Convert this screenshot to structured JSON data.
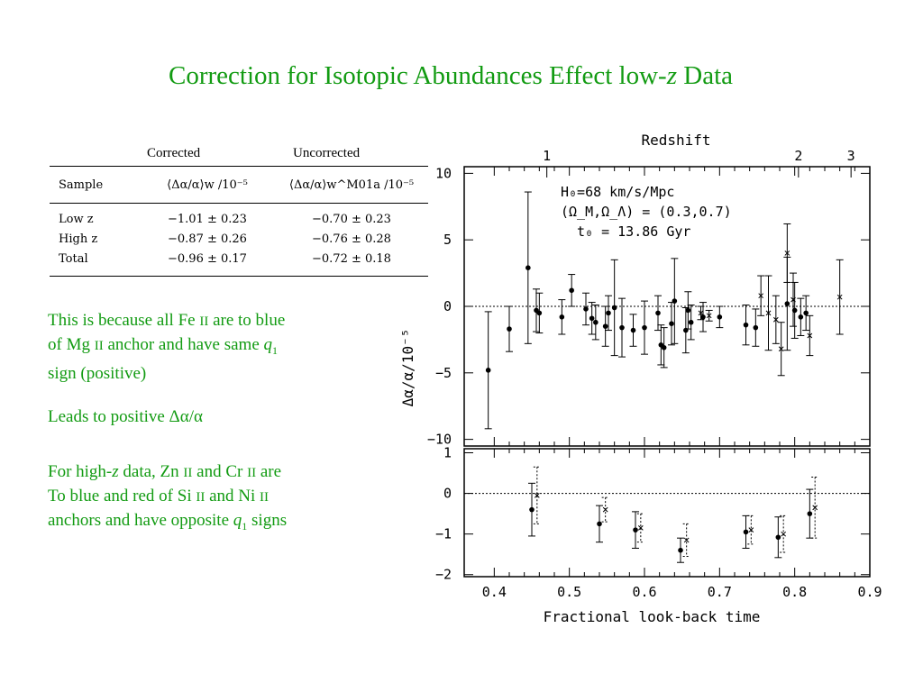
{
  "slide": {
    "title_main": "Correction for Isotopic Abundances Effect low-",
    "title_z": "z",
    "title_tail": " Data"
  },
  "table": {
    "caption_corrected": "Corrected",
    "caption_uncorrected": "Uncorrected",
    "header_sample": "Sample",
    "header_corrected": "⟨Δα/α⟩w /10⁻⁵",
    "header_uncorrected": "⟨Δα/α⟩w^M01a /10⁻⁵",
    "rows": [
      {
        "sample": "Low z",
        "corrected": "−1.01 ± 0.23",
        "uncorrected": "−0.70 ± 0.23"
      },
      {
        "sample": "High z",
        "corrected": "−0.87 ± 0.26",
        "uncorrected": "−0.76 ± 0.28"
      },
      {
        "sample": "Total",
        "corrected": "−0.96 ± 0.17",
        "uncorrected": "−0.72 ± 0.18"
      }
    ]
  },
  "text": {
    "p1": {
      "a": "This is because all Fe ",
      "fe_ion": "II",
      "b": " are to blue",
      "c": "of Mg ",
      "mg_ion": "II",
      "d": " anchor and have same ",
      "q": "q",
      "q_sub": "1",
      "e": "sign (positive)"
    },
    "p2": {
      "a": "Leads to positive Δα/α"
    },
    "p3": {
      "a": "For high-",
      "z": "z",
      "b": " data, Zn ",
      "zn_ion": "II",
      "c": " and Cr ",
      "cr_ion": "II",
      "d": " are",
      "e": "To blue and red of Si ",
      "si_ion": "II",
      "f": " and Ni ",
      "ni_ion": "II",
      "g": "anchors and have opposite ",
      "q": "q",
      "q_sub": "1",
      "h": " signs"
    }
  },
  "chart_data": [
    {
      "type": "scatter",
      "title": "",
      "xlabel": "Fractional look-back time",
      "ylabel": "Δα/α/10⁻⁵",
      "top_axis_label": "Redshift",
      "top_axis_ticks": [
        {
          "label": "1",
          "x": 0.47
        },
        {
          "label": "2",
          "x": 0.805
        },
        {
          "label": "3",
          "x": 0.875
        }
      ],
      "xlim": [
        0.36,
        0.9
      ],
      "ylim": [
        -10.5,
        10.5
      ],
      "x_ticks": [
        0.4,
        0.5,
        0.6,
        0.7,
        0.8,
        0.9
      ],
      "y_ticks": [
        10,
        5,
        0,
        -5,
        -10
      ],
      "reference_line": 0,
      "annotations": [
        "H₀=68 km/s/Mpc",
        "(Ω_M,Ω_Λ) = (0.3,0.7)",
        "t₀ = 13.86 Gyr"
      ],
      "series": [
        {
          "marker": "dot",
          "points": [
            {
              "x": 0.392,
              "y": -4.8,
              "err": 4.4
            },
            {
              "x": 0.42,
              "y": -1.7,
              "err": 1.7
            },
            {
              "x": 0.445,
              "y": 2.9,
              "err": 5.7
            },
            {
              "x": 0.456,
              "y": -0.3,
              "err": 1.6
            },
            {
              "x": 0.46,
              "y": -0.5,
              "err": 1.5
            },
            {
              "x": 0.49,
              "y": -0.8,
              "err": 1.3
            },
            {
              "x": 0.503,
              "y": 1.2,
              "err": 1.2
            },
            {
              "x": 0.522,
              "y": -0.2,
              "err": 1.2
            },
            {
              "x": 0.53,
              "y": -0.9,
              "err": 1.2
            },
            {
              "x": 0.535,
              "y": -1.2,
              "err": 1.3
            },
            {
              "x": 0.548,
              "y": -1.5,
              "err": 1.5
            },
            {
              "x": 0.552,
              "y": -0.5,
              "err": 1.3
            },
            {
              "x": 0.56,
              "y": -0.1,
              "err": 3.6
            },
            {
              "x": 0.57,
              "y": -1.6,
              "err": 2.2
            },
            {
              "x": 0.585,
              "y": -1.8,
              "err": 1.2
            },
            {
              "x": 0.6,
              "y": -1.6,
              "err": 2.0
            },
            {
              "x": 0.618,
              "y": -0.5,
              "err": 1.3
            },
            {
              "x": 0.622,
              "y": -2.9,
              "err": 1.5
            },
            {
              "x": 0.626,
              "y": -3.1,
              "err": 1.5
            },
            {
              "x": 0.636,
              "y": -1.3,
              "err": 1.6
            },
            {
              "x": 0.64,
              "y": 0.4,
              "err": 3.2
            },
            {
              "x": 0.655,
              "y": -1.8,
              "err": 1.7
            },
            {
              "x": 0.658,
              "y": -0.3,
              "err": 1.4
            },
            {
              "x": 0.662,
              "y": -1.2,
              "err": 1.3
            },
            {
              "x": 0.678,
              "y": -0.8,
              "err": 1.1
            },
            {
              "x": 0.7,
              "y": -0.8,
              "err": 0.8
            },
            {
              "x": 0.735,
              "y": -1.4,
              "err": 1.5
            },
            {
              "x": 0.748,
              "y": -1.6,
              "err": 1.4
            },
            {
              "x": 0.79,
              "y": 0.2,
              "err": 3.5
            },
            {
              "x": 0.8,
              "y": -0.3,
              "err": 2.1
            },
            {
              "x": 0.808,
              "y": -0.8,
              "err": 1.4
            },
            {
              "x": 0.815,
              "y": -0.5,
              "err": 1.3
            }
          ]
        },
        {
          "marker": "cross",
          "points": [
            {
              "x": 0.675,
              "y": -0.5,
              "err": 0.5
            },
            {
              "x": 0.686,
              "y": -0.7,
              "err": 0.4
            },
            {
              "x": 0.755,
              "y": 0.8,
              "err": 1.5
            },
            {
              "x": 0.765,
              "y": -0.5,
              "err": 2.8
            },
            {
              "x": 0.775,
              "y": -1.0,
              "err": 1.8
            },
            {
              "x": 0.782,
              "y": -3.2,
              "err": 2.0
            },
            {
              "x": 0.79,
              "y": 4.0,
              "err": 2.2
            },
            {
              "x": 0.798,
              "y": 0.5,
              "err": 2.0
            },
            {
              "x": 0.82,
              "y": -2.2,
              "err": 1.5
            },
            {
              "x": 0.86,
              "y": 0.7,
              "err": 2.8
            }
          ]
        }
      ]
    },
    {
      "type": "scatter",
      "title": "",
      "xlabel": "Fractional look-back time",
      "ylabel": "",
      "xlim": [
        0.36,
        0.9
      ],
      "ylim": [
        -2.05,
        1.1
      ],
      "x_ticks": [
        0.4,
        0.5,
        0.6,
        0.7,
        0.8,
        0.9
      ],
      "y_ticks": [
        1,
        0,
        -1,
        -2
      ],
      "reference_line": 0,
      "series": [
        {
          "marker": "dot-solid-error",
          "points": [
            {
              "x": 0.45,
              "y": -0.4,
              "err": 0.65
            },
            {
              "x": 0.54,
              "y": -0.75,
              "err": 0.45
            },
            {
              "x": 0.588,
              "y": -0.9,
              "err": 0.45
            },
            {
              "x": 0.648,
              "y": -1.4,
              "err": 0.3
            },
            {
              "x": 0.735,
              "y": -0.95,
              "err": 0.4
            },
            {
              "x": 0.778,
              "y": -1.08,
              "err": 0.5
            },
            {
              "x": 0.82,
              "y": -0.5,
              "err": 0.6
            }
          ]
        },
        {
          "marker": "cross-dotted-error",
          "points": [
            {
              "x": 0.457,
              "y": -0.05,
              "err": 0.7
            },
            {
              "x": 0.548,
              "y": -0.4,
              "err": 0.3
            },
            {
              "x": 0.595,
              "y": -0.85,
              "err": 0.35
            },
            {
              "x": 0.656,
              "y": -1.15,
              "err": 0.4
            },
            {
              "x": 0.742,
              "y": -0.9,
              "err": 0.35
            },
            {
              "x": 0.785,
              "y": -1.0,
              "err": 0.45
            },
            {
              "x": 0.827,
              "y": -0.35,
              "err": 0.75
            }
          ]
        }
      ]
    }
  ]
}
